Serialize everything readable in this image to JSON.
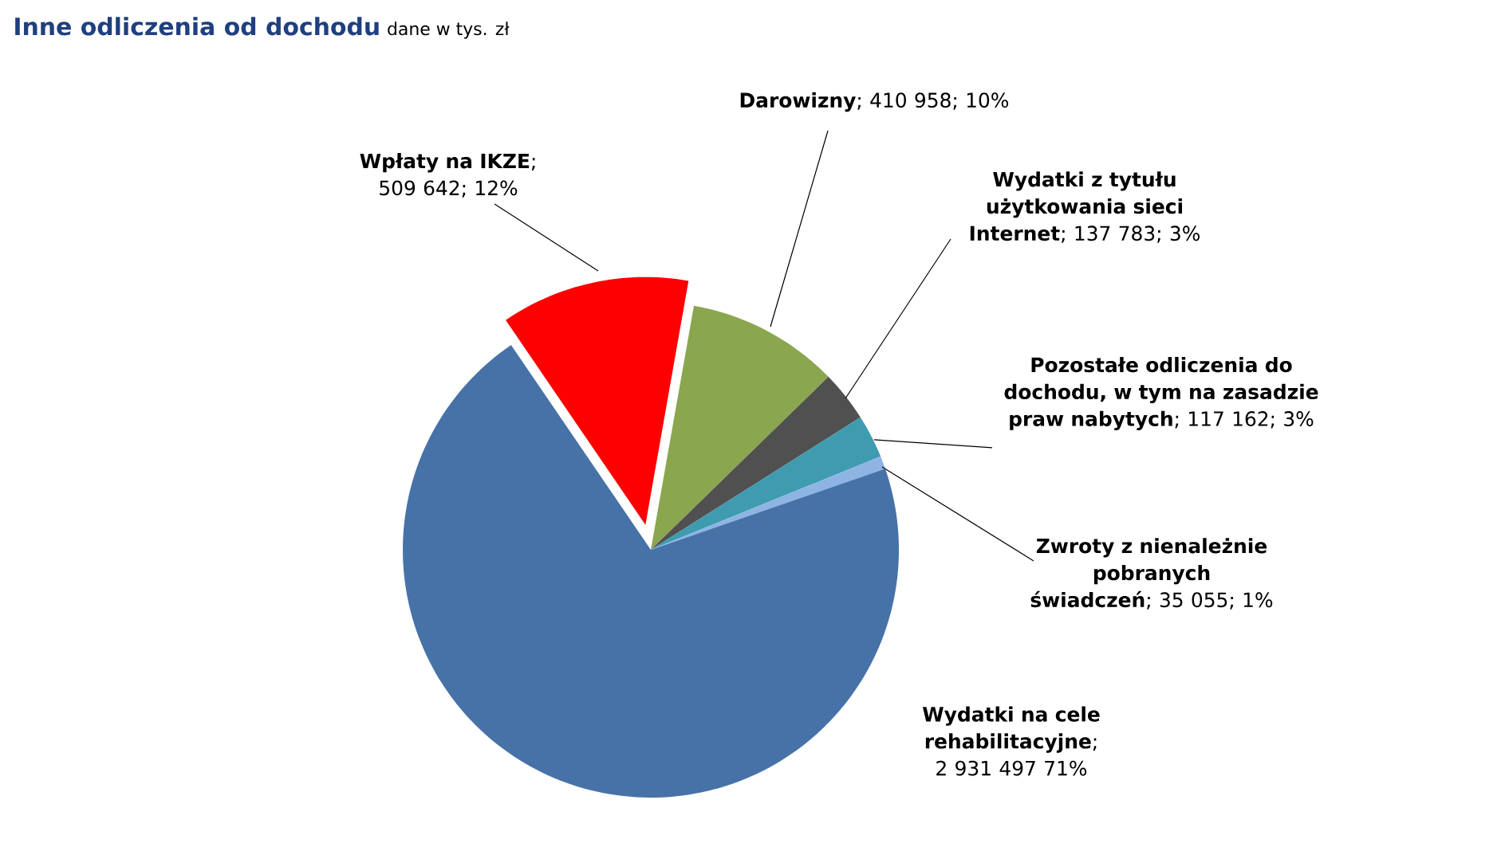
{
  "chart_data": {
    "type": "pie",
    "title": "Inne odliczenia od dochodu",
    "subtitle": "dane w tys. zł",
    "categories": [
      "Darowizny",
      "Wydatki z tytułu użytkowania sieci Internet",
      "Pozostałe odliczenia do dochodu, w tym na zasadzie praw nabytych",
      "Zwroty z nienależnie pobranych świadczeń",
      "Wydatki na cele rehabilitacyjne",
      "Wpłaty na IKZE"
    ],
    "values": [
      410958,
      137783,
      117162,
      35055,
      2931497,
      509642
    ],
    "colors": [
      "#8aa64f",
      "#505050",
      "#3e9bb0",
      "#8eb4e3",
      "#4672a8",
      "#ff0000"
    ],
    "value_labels": [
      "; 410 958; 10%",
      "; 137 783; 3%",
      "; 117 162; 3%",
      "; 35 055; 1%",
      "; 2 931 497 71%",
      "; 509 642; 12%"
    ]
  }
}
